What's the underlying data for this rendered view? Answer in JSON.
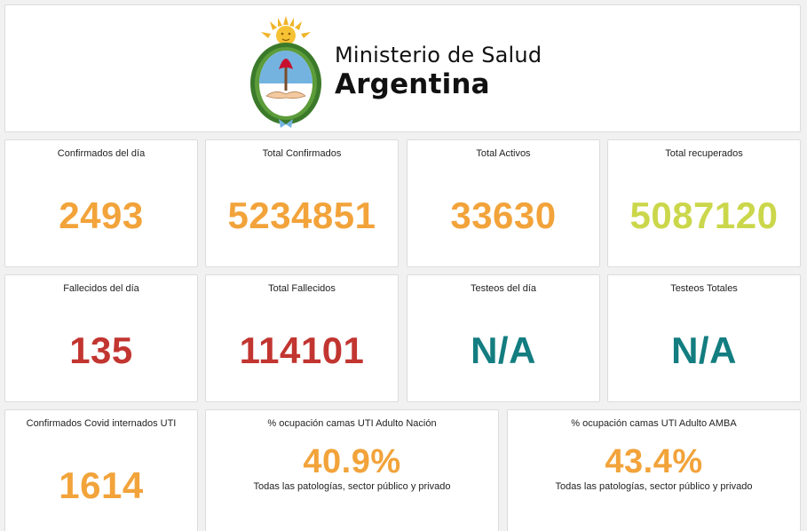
{
  "header": {
    "ministry_line1": "Ministerio de Salud",
    "ministry_line2": "Argentina",
    "logo_icon": "argentina-coat-of-arms-icon"
  },
  "colors": {
    "orange": "#f2a33a",
    "red": "#c23530",
    "teal": "#137d80",
    "lime": "#cbd74a"
  },
  "stats": [
    {
      "title": "Confirmados del día",
      "value": "2493"
    },
    {
      "title": "Total Confirmados",
      "value": "5234851"
    },
    {
      "title": "Total Activos",
      "value": "33630"
    },
    {
      "title": "Total recuperados",
      "value": "5087120"
    },
    {
      "title": "Fallecidos del día",
      "value": "135"
    },
    {
      "title": "Total Fallecidos",
      "value": "114101"
    },
    {
      "title": "Testeos del día",
      "value": "N/A"
    },
    {
      "title": "Testeos Totales",
      "value": "N/A"
    },
    {
      "title": "Confirmados Covid internados UTI",
      "value": "1614"
    },
    {
      "title": "% ocupación camas UTI Adulto Nación",
      "value": "40.9%",
      "subtitle": "Todas las patologías, sector público y privado"
    },
    {
      "title": "% ocupación camas UTI Adulto AMBA",
      "value": "43.4%",
      "subtitle": "Todas las patologías, sector público y privado"
    }
  ]
}
